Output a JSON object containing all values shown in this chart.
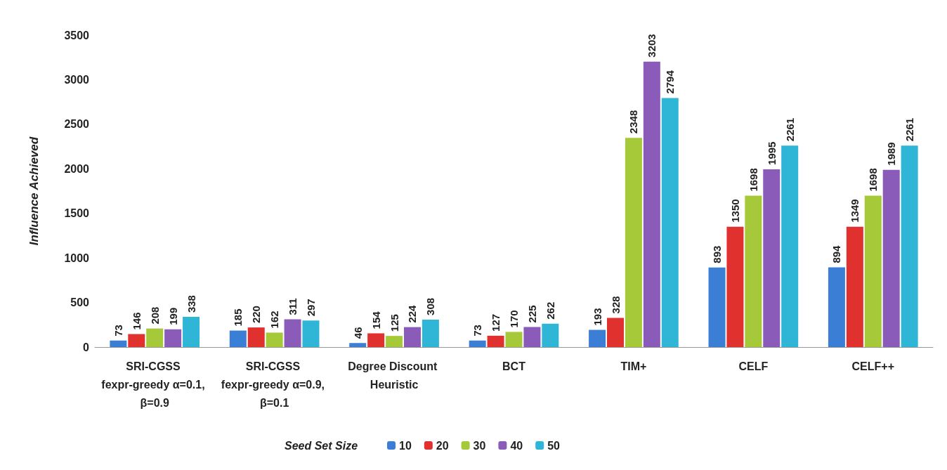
{
  "chart_data": {
    "type": "bar",
    "ylabel": "Influence Achieved",
    "legend_title": "Seed Set Size",
    "categories": [
      "SRI-CGSS fexpr-greedy α=0.1, β=0.9",
      "SRI-CGSS fexpr-greedy α=0.9, β=0.1",
      "Degree Discount Heuristic",
      "BCT",
      "TIM+",
      "CELF",
      "CELF++"
    ],
    "series": [
      {
        "name": "10",
        "color": "#3a7fd5",
        "values": [
          73,
          185,
          46,
          73,
          193,
          893,
          894
        ]
      },
      {
        "name": "20",
        "color": "#e0312f",
        "values": [
          146,
          220,
          154,
          127,
          328,
          1350,
          1349
        ]
      },
      {
        "name": "30",
        "color": "#a6c93a",
        "values": [
          208,
          162,
          125,
          170,
          2348,
          1698,
          1698
        ]
      },
      {
        "name": "40",
        "color": "#8a5bb8",
        "values": [
          199,
          311,
          224,
          225,
          3203,
          1995,
          1989
        ]
      },
      {
        "name": "50",
        "color": "#2fb5d6",
        "values": [
          338,
          297,
          308,
          262,
          2794,
          2261,
          2261
        ]
      }
    ],
    "ylim": [
      0,
      3500
    ],
    "yticks": [
      0,
      500,
      1000,
      1500,
      2000,
      2500,
      3000,
      3500
    ],
    "grid": false,
    "legend": "bottom",
    "data_labels": true
  }
}
